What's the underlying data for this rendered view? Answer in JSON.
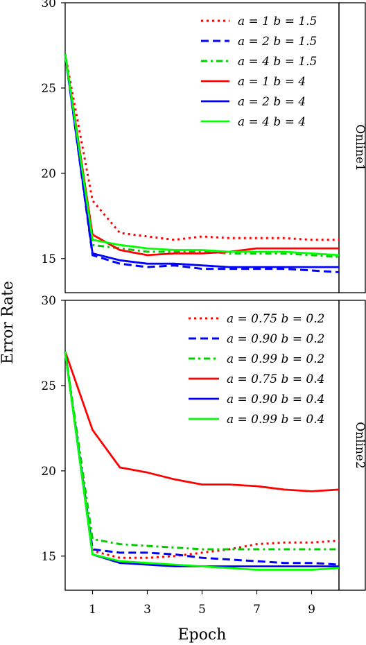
{
  "chart_data": {
    "type": "line",
    "xlabel": "Epoch",
    "ylabel": "Error Rate",
    "xlim": [
      0,
      10
    ],
    "ylim": [
      13,
      30
    ],
    "x_ticks": [
      1,
      3,
      5,
      7,
      9
    ],
    "y_ticks": [
      15,
      20,
      25,
      30
    ],
    "legend_position": "top-right",
    "panels": [
      {
        "strip": "Online1",
        "series": [
          {
            "name": "a = 1 b = 1.5",
            "color": "#ff0000",
            "style": "dotted",
            "x": [
              0,
              1,
              2,
              3,
              4,
              5,
              6,
              7,
              8,
              9,
              10
            ],
            "y": [
              27.0,
              18.4,
              16.5,
              16.3,
              16.1,
              16.3,
              16.2,
              16.2,
              16.2,
              16.1,
              16.1
            ]
          },
          {
            "name": "a = 2 b = 1.5",
            "color": "#0000ff",
            "style": "dashed",
            "x": [
              0,
              1,
              2,
              3,
              4,
              5,
              6,
              7,
              8,
              9,
              10
            ],
            "y": [
              27.0,
              15.2,
              14.7,
              14.5,
              14.6,
              14.4,
              14.4,
              14.4,
              14.4,
              14.3,
              14.2
            ]
          },
          {
            "name": "a = 4 b = 1.5",
            "color": "#00cc00",
            "style": "dashdot",
            "x": [
              0,
              1,
              2,
              3,
              4,
              5,
              6,
              7,
              8,
              9,
              10
            ],
            "y": [
              27.0,
              15.8,
              15.6,
              15.4,
              15.4,
              15.4,
              15.3,
              15.3,
              15.3,
              15.2,
              15.1
            ]
          },
          {
            "name": "a = 1 b = 4",
            "color": "#ff0000",
            "style": "solid",
            "x": [
              0,
              1,
              2,
              3,
              4,
              5,
              6,
              7,
              8,
              9,
              10
            ],
            "y": [
              27.0,
              16.4,
              15.5,
              15.2,
              15.3,
              15.3,
              15.4,
              15.6,
              15.6,
              15.6,
              15.6
            ]
          },
          {
            "name": "a = 2 b = 4",
            "color": "#0000ff",
            "style": "solid",
            "x": [
              0,
              1,
              2,
              3,
              4,
              5,
              6,
              7,
              8,
              9,
              10
            ],
            "y": [
              27.0,
              15.3,
              14.9,
              14.7,
              14.7,
              14.6,
              14.5,
              14.5,
              14.5,
              14.5,
              14.5
            ]
          },
          {
            "name": "a = 4 b = 4",
            "color": "#00ff00",
            "style": "solid",
            "x": [
              0,
              1,
              2,
              3,
              4,
              5,
              6,
              7,
              8,
              9,
              10
            ],
            "y": [
              27.0,
              16.1,
              15.8,
              15.6,
              15.5,
              15.5,
              15.4,
              15.4,
              15.4,
              15.3,
              15.2
            ]
          }
        ]
      },
      {
        "strip": "Online2",
        "series": [
          {
            "name": "a = 0.75 b = 0.2",
            "color": "#ff0000",
            "style": "dotted",
            "x": [
              0,
              1,
              2,
              3,
              4,
              5,
              6,
              7,
              8,
              9,
              10
            ],
            "y": [
              27.0,
              15.3,
              14.9,
              14.9,
              15.0,
              15.2,
              15.4,
              15.7,
              15.8,
              15.8,
              15.9
            ]
          },
          {
            "name": "a = 0.90 b = 0.2",
            "color": "#0000ff",
            "style": "dashed",
            "x": [
              0,
              1,
              2,
              3,
              4,
              5,
              6,
              7,
              8,
              9,
              10
            ],
            "y": [
              27.0,
              15.4,
              15.2,
              15.2,
              15.1,
              14.9,
              14.8,
              14.7,
              14.6,
              14.6,
              14.5
            ]
          },
          {
            "name": "a = 0.99 b = 0.2",
            "color": "#00cc00",
            "style": "dashdot",
            "x": [
              0,
              1,
              2,
              3,
              4,
              5,
              6,
              7,
              8,
              9,
              10
            ],
            "y": [
              27.0,
              16.0,
              15.7,
              15.6,
              15.5,
              15.4,
              15.4,
              15.4,
              15.4,
              15.4,
              15.4
            ]
          },
          {
            "name": "a = 0.75 b = 0.4",
            "color": "#ff0000",
            "style": "solid",
            "x": [
              0,
              1,
              2,
              3,
              4,
              5,
              6,
              7,
              8,
              9,
              10
            ],
            "y": [
              27.0,
              22.4,
              20.2,
              19.9,
              19.5,
              19.2,
              19.2,
              19.1,
              18.9,
              18.8,
              18.9
            ]
          },
          {
            "name": "a = 0.90 b = 0.4",
            "color": "#0000ff",
            "style": "solid",
            "x": [
              0,
              1,
              2,
              3,
              4,
              5,
              6,
              7,
              8,
              9,
              10
            ],
            "y": [
              27.0,
              15.1,
              14.6,
              14.5,
              14.4,
              14.4,
              14.4,
              14.4,
              14.4,
              14.4,
              14.4
            ]
          },
          {
            "name": "a = 0.99 b = 0.4",
            "color": "#00ff00",
            "style": "solid",
            "x": [
              0,
              1,
              2,
              3,
              4,
              5,
              6,
              7,
              8,
              9,
              10
            ],
            "y": [
              27.0,
              15.1,
              14.7,
              14.6,
              14.5,
              14.4,
              14.3,
              14.2,
              14.2,
              14.2,
              14.3
            ]
          }
        ]
      }
    ]
  }
}
